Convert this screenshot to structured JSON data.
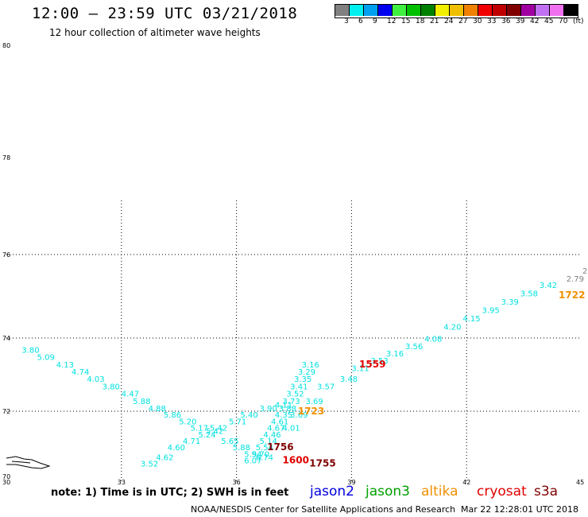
{
  "header": {
    "title": "12:00 – 23:59 UTC 03/21/2018",
    "subtitle": "12 hour collection of altimeter wave heights"
  },
  "legend": {
    "colors": [
      "#808080",
      "#00f0f0",
      "#00a0f0",
      "#0000f0",
      "#40f040",
      "#00c000",
      "#008000",
      "#f0f000",
      "#f0c000",
      "#f08000",
      "#f00000",
      "#c00000",
      "#800000",
      "#a000a0",
      "#c070f0",
      "#f070f0",
      "#000000"
    ],
    "labels": [
      "3",
      "6",
      "9",
      "12",
      "15",
      "18",
      "21",
      "24",
      "27",
      "30",
      "33",
      "36",
      "39",
      "42",
      "45",
      "70",
      "(ft)"
    ]
  },
  "map": {
    "lat_labels": [
      "80",
      "78",
      "76",
      "74",
      "72",
      "70"
    ],
    "lon_labels": [
      "30",
      "33",
      "36",
      "39",
      "42",
      "45"
    ],
    "right_edge_label": "2"
  },
  "chart_data": {
    "type": "scatter",
    "x_axis": "longitude",
    "y_axis": "latitude",
    "xlim": [
      30,
      45
    ],
    "ylim": [
      70,
      80
    ],
    "tracks": [
      {
        "name": "track_a",
        "color": "#00e0e0",
        "points": [
          {
            "lon": 30.4,
            "lat": 73.6,
            "v": "3.80"
          },
          {
            "lon": 30.8,
            "lat": 73.4,
            "v": "5.09"
          },
          {
            "lon": 31.3,
            "lat": 73.2,
            "v": "4.13"
          },
          {
            "lon": 31.7,
            "lat": 73.0,
            "v": "4.74"
          },
          {
            "lon": 32.1,
            "lat": 72.8,
            "v": "4.03"
          },
          {
            "lon": 32.5,
            "lat": 72.6,
            "v": "3.80"
          },
          {
            "lon": 33.0,
            "lat": 72.4,
            "v": "4.47"
          },
          {
            "lon": 33.3,
            "lat": 72.2,
            "v": "5.88"
          },
          {
            "lon": 33.7,
            "lat": 72.0,
            "v": "4.88"
          },
          {
            "lon": 34.1,
            "lat": 71.8,
            "v": "5.86"
          },
          {
            "lon": 34.5,
            "lat": 71.6,
            "v": "5.20"
          },
          {
            "lon": 34.8,
            "lat": 71.4,
            "v": "5.17"
          },
          {
            "lon": 35.2,
            "lat": 71.3,
            "v": "5.42"
          },
          {
            "lon": 35.6,
            "lat": 71.0,
            "v": "5.65"
          },
          {
            "lon": 35.9,
            "lat": 70.8,
            "v": "5.88"
          },
          {
            "lon": 36.2,
            "lat": 70.6,
            "v": "5.94"
          },
          {
            "lon": 36.5,
            "lat": 70.5,
            "v": "6.74"
          }
        ]
      },
      {
        "name": "track_b",
        "color": "#00e0e0",
        "points": [
          {
            "lon": 33.5,
            "lat": 70.3,
            "v": "3.52"
          },
          {
            "lon": 33.9,
            "lat": 70.5,
            "v": "4.62"
          },
          {
            "lon": 34.2,
            "lat": 70.8,
            "v": "4.60"
          },
          {
            "lon": 34.6,
            "lat": 71.0,
            "v": "4.71"
          },
          {
            "lon": 35.0,
            "lat": 71.2,
            "v": "5.24"
          },
          {
            "lon": 35.3,
            "lat": 71.4,
            "v": "5.42"
          },
          {
            "lon": 35.8,
            "lat": 71.6,
            "v": "5.71"
          },
          {
            "lon": 36.1,
            "lat": 71.8,
            "v": "5.40"
          },
          {
            "lon": 36.6,
            "lat": 72.0,
            "v": "3.90"
          },
          {
            "lon": 37.0,
            "lat": 72.1,
            "v": "4.11"
          }
        ]
      },
      {
        "name": "track_c",
        "color": "#00e0e0",
        "points": [
          {
            "lon": 36.2,
            "lat": 70.4,
            "v": "6.07"
          },
          {
            "lon": 36.4,
            "lat": 70.6,
            "v": "5.70"
          },
          {
            "lon": 36.5,
            "lat": 70.8,
            "v": "5.54"
          },
          {
            "lon": 36.6,
            "lat": 71.0,
            "v": "5.14"
          },
          {
            "lon": 36.7,
            "lat": 71.2,
            "v": "4.46"
          },
          {
            "lon": 36.8,
            "lat": 71.4,
            "v": "4.67"
          },
          {
            "lon": 36.9,
            "lat": 71.6,
            "v": "4.61"
          },
          {
            "lon": 37.0,
            "lat": 71.8,
            "v": "4.35"
          },
          {
            "lon": 37.1,
            "lat": 72.0,
            "v": "3.88"
          },
          {
            "lon": 37.2,
            "lat": 72.2,
            "v": "3.73"
          },
          {
            "lon": 37.3,
            "lat": 72.4,
            "v": "3.52"
          },
          {
            "lon": 37.4,
            "lat": 72.6,
            "v": "3.41"
          },
          {
            "lon": 37.5,
            "lat": 72.8,
            "v": "3.35"
          },
          {
            "lon": 37.6,
            "lat": 73.0,
            "v": "3.29"
          },
          {
            "lon": 37.7,
            "lat": 73.2,
            "v": "3.16"
          }
        ]
      },
      {
        "name": "track_d",
        "color": "#00e0e0",
        "points": [
          {
            "lon": 37.2,
            "lat": 71.4,
            "v": "4.01"
          },
          {
            "lon": 37.4,
            "lat": 71.8,
            "v": "3.69"
          },
          {
            "lon": 37.8,
            "lat": 72.2,
            "v": "3.69"
          },
          {
            "lon": 38.1,
            "lat": 72.6,
            "v": "3.57"
          },
          {
            "lon": 38.7,
            "lat": 72.8,
            "v": "3.48"
          },
          {
            "lon": 39.0,
            "lat": 73.1,
            "v": "3.11"
          },
          {
            "lon": 39.5,
            "lat": 73.3,
            "v": "3.53"
          },
          {
            "lon": 39.9,
            "lat": 73.5,
            "v": "3.16"
          },
          {
            "lon": 40.4,
            "lat": 73.7,
            "v": "3.56"
          },
          {
            "lon": 40.9,
            "lat": 73.9,
            "v": "4.08"
          },
          {
            "lon": 41.4,
            "lat": 74.2,
            "v": "4.20"
          },
          {
            "lon": 41.9,
            "lat": 74.4,
            "v": "4.15"
          },
          {
            "lon": 42.4,
            "lat": 74.6,
            "v": "3.95"
          },
          {
            "lon": 42.9,
            "lat": 74.8,
            "v": "3.39"
          },
          {
            "lon": 43.4,
            "lat": 75.0,
            "v": "3.58"
          },
          {
            "lon": 43.9,
            "lat": 75.2,
            "v": "3.42"
          }
        ]
      }
    ],
    "time_labels": [
      {
        "lon": 39.2,
        "lat": 73.2,
        "text": "1559",
        "color": "#e00000"
      },
      {
        "lon": 37.6,
        "lat": 71.9,
        "text": "1723",
        "color": "#f09000"
      },
      {
        "lon": 44.4,
        "lat": 74.95,
        "text": "1722",
        "color": "#f09000"
      },
      {
        "lon": 36.8,
        "lat": 70.8,
        "text": "1756",
        "color": "#800000"
      },
      {
        "lon": 37.2,
        "lat": 70.4,
        "text": "1600",
        "color": "#e00000"
      },
      {
        "lon": 37.9,
        "lat": 70.3,
        "text": "1755",
        "color": "#800000"
      }
    ],
    "extra_values": [
      {
        "lon": 44.6,
        "lat": 75.35,
        "text": "2.79",
        "color": "#808080"
      }
    ]
  },
  "footer": {
    "note": "note: 1) Time is in UTC; 2) SWH is in feet",
    "satellites": [
      {
        "name": "jason2",
        "color": "#0000e0"
      },
      {
        "name": "jason3",
        "color": "#00a000"
      },
      {
        "name": "altika",
        "color": "#f09000"
      },
      {
        "name": "cryosat",
        "color": "#e00000"
      },
      {
        "name": "s3a",
        "color": "#800000"
      }
    ],
    "credit": "NOAA/NESDIS Center for Satellite Applications and Research",
    "timestamp": "Mar 22 12:28:01 UTC 2018"
  }
}
